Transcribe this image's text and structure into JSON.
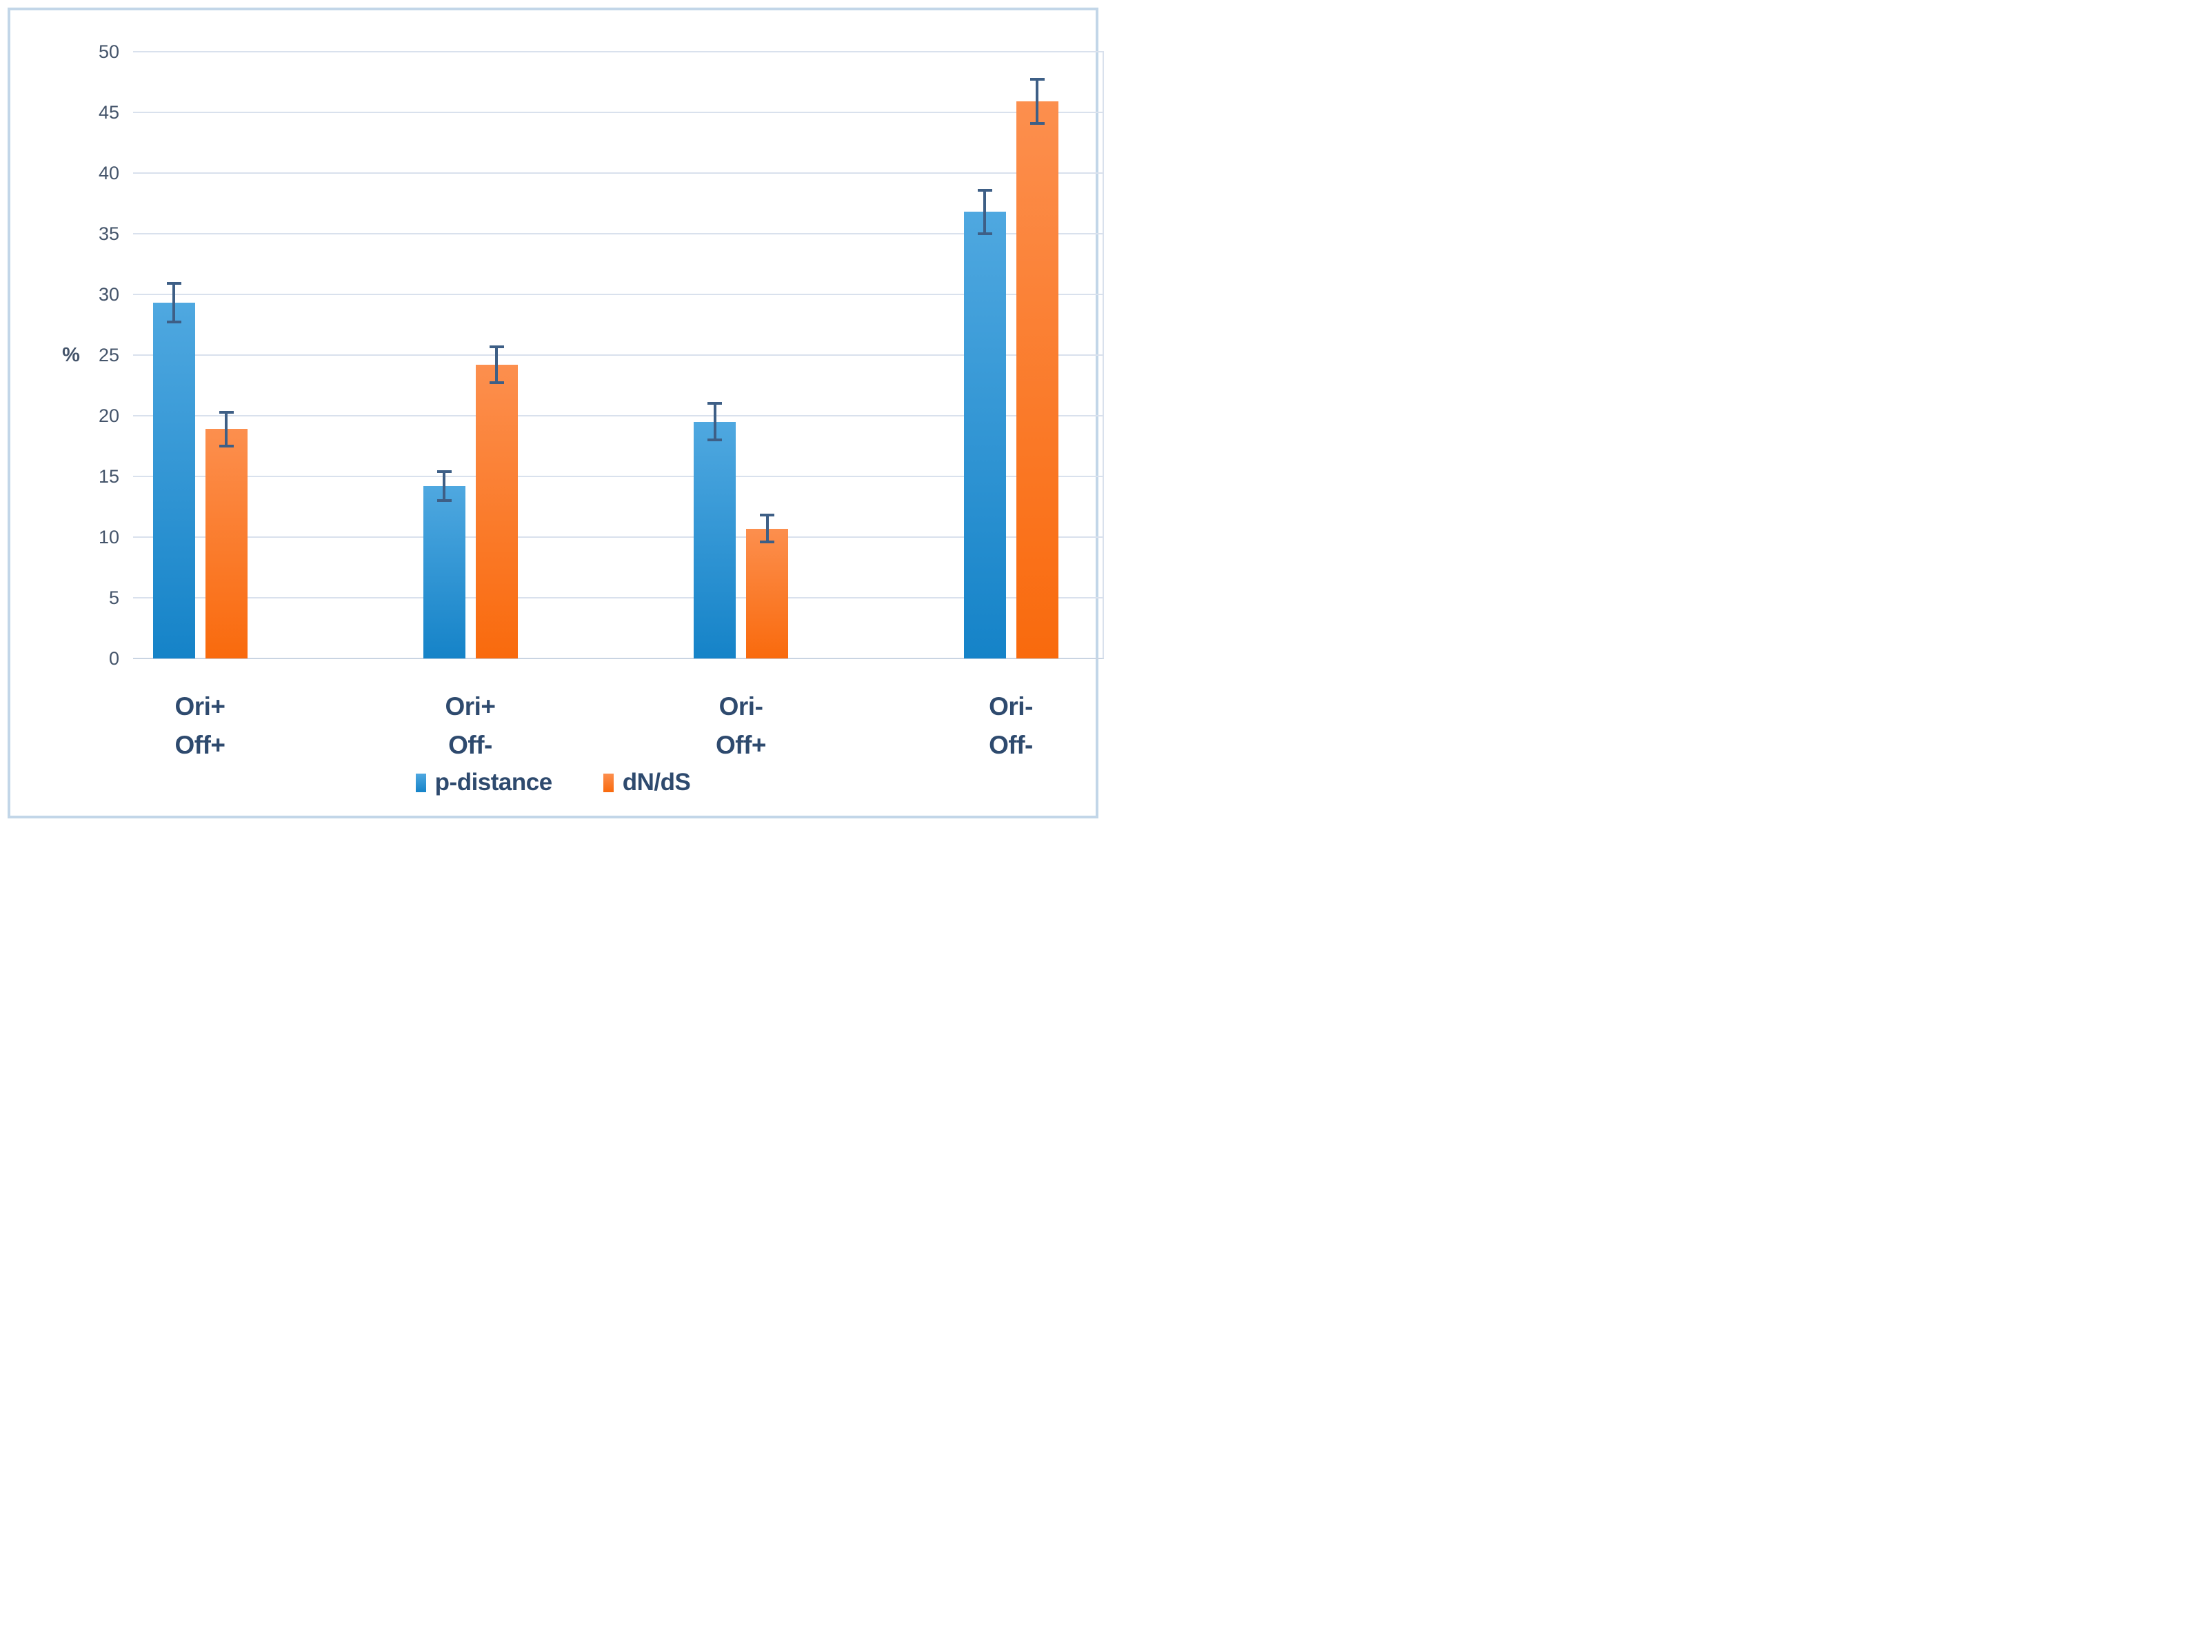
{
  "chart_data": {
    "type": "bar",
    "title": "",
    "ylabel": "%",
    "ylim": [
      0,
      50
    ],
    "ytick_step": 5,
    "yticks": [
      0,
      5,
      10,
      15,
      20,
      25,
      30,
      35,
      40,
      45,
      50
    ],
    "grid": true,
    "legend_position": "bottom",
    "categories": [
      [
        "Ori+",
        "Off+"
      ],
      [
        "Ori+",
        "Off-"
      ],
      [
        "Ori-",
        "Off+"
      ],
      [
        "Ori-",
        "Off-"
      ]
    ],
    "series": [
      {
        "name": "p-distance",
        "color": "#1f8ccd",
        "gradient_top": "#4fa8e0",
        "gradient_bottom": "#1583c8",
        "values": [
          29.3,
          14.2,
          19.5,
          36.8
        ],
        "error_bars": [
          1.6,
          1.2,
          1.5,
          1.8
        ]
      },
      {
        "name": "dN/dS",
        "color": "#f9710f",
        "gradient_top": "#fc8f4e",
        "gradient_bottom": "#f96a0d",
        "values": [
          18.9,
          24.2,
          10.7,
          45.9
        ],
        "error_bars": [
          1.4,
          1.5,
          1.1,
          1.8
        ]
      }
    ],
    "error_bar_color": "#3e5f86",
    "grid_color": "#d9e1ed",
    "axis_line_color": "#c9d4e2",
    "frame_color": "#c2d6e8",
    "tick_text_color": "#44546a",
    "label_text_color": "#2e4a6e"
  }
}
